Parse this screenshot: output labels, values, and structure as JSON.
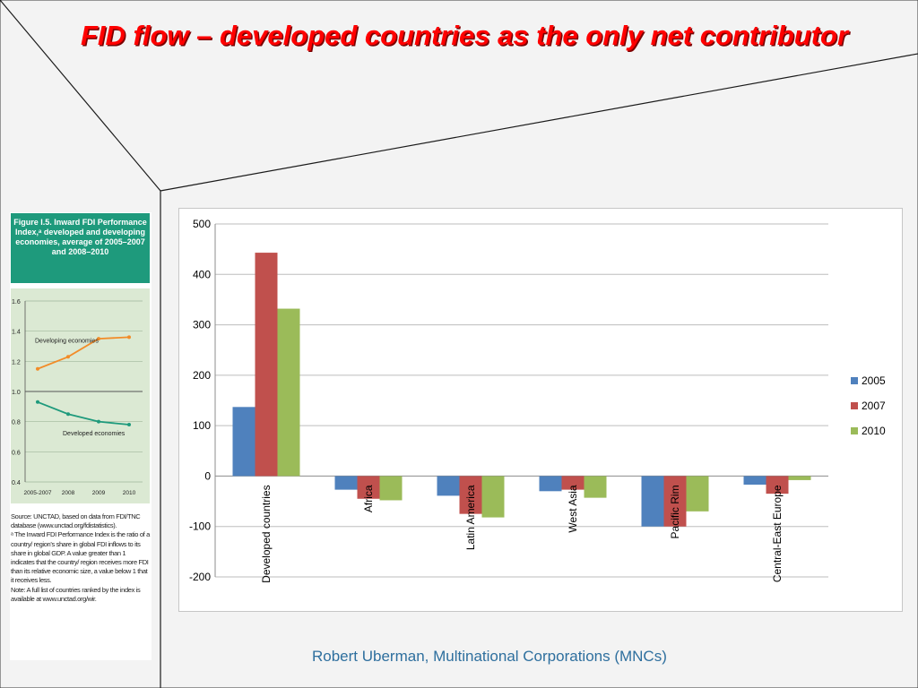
{
  "slide": {
    "title": "FID flow – developed countries as the only net contributor",
    "footer": "Robert Uberman, Multinational Corporations (MNCs)"
  },
  "figure": {
    "header": "Figure I.5.  Inward FDI Performance Index,ᵃ developed and developing economies, average of 2005–2007 and 2008–2010",
    "series_labels": {
      "developing": "Developing economies",
      "developed": "Developed economies"
    },
    "y_ticks": [
      "1.6",
      "1.4",
      "1.2",
      "1.0",
      "0.8",
      "0.6",
      "0.4"
    ],
    "x_ticks": [
      "2005-2007",
      "2008",
      "2009",
      "2010"
    ],
    "notes": [
      "Source: UNCTAD, based on data from FDI/TNC database (www.unctad.org/fdistatistics).",
      "ᵃ The Inward FDI Performance Index is the ratio of a country/ region's share in global FDI inflows to its share in global GDP. A value greater than 1 indicates that the country/ region receives more FDI than its relative economic size, a value below 1 that it receives less.",
      "Note: A full list of countries ranked by the index is available at www.unctad.org/wir."
    ],
    "chart_data": {
      "type": "line",
      "x": [
        "2005-2007",
        "2008",
        "2009",
        "2010"
      ],
      "ylim": [
        0.4,
        1.6
      ],
      "series": [
        {
          "name": "Developing economies",
          "values": [
            1.15,
            1.23,
            1.35,
            1.36
          ],
          "color": "#f28c28"
        },
        {
          "name": "Developed economies",
          "values": [
            0.93,
            0.85,
            0.8,
            0.78
          ],
          "color": "#1e9a7c"
        }
      ]
    }
  },
  "chart_data": {
    "type": "bar",
    "categories": [
      "Developed countries",
      "Africa",
      "Latin America",
      "West Asia",
      "Pacific Rim",
      "Central-East Europe"
    ],
    "series": [
      {
        "name": "2005",
        "color": "#4f81bd",
        "values": [
          137,
          -27,
          -39,
          -30,
          -100,
          -17
        ]
      },
      {
        "name": "2007",
        "color": "#c0504d",
        "values": [
          443,
          -45,
          -75,
          -27,
          -100,
          -35
        ]
      },
      {
        "name": "2010",
        "color": "#9bbb59",
        "values": [
          332,
          -48,
          -82,
          -43,
          -70,
          -8
        ]
      }
    ],
    "ylim": [
      -200,
      500
    ],
    "y_ticks": [
      "500",
      "400",
      "300",
      "200",
      "100",
      "0",
      "-100",
      "-200"
    ],
    "grid": true,
    "legend": "right"
  }
}
